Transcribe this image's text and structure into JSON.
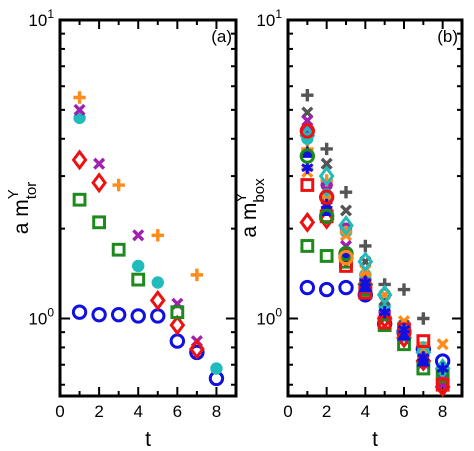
{
  "chart_data": [
    {
      "type": "scatter",
      "panel_label": "(a)",
      "xlabel": "t",
      "ylabel": {
        "main": "a m",
        "sup": "Y",
        "sub": "tor"
      },
      "xlim": [
        0,
        9
      ],
      "ylim": [
        0.55,
        10
      ],
      "yscale": "log",
      "x_ticks": [
        0,
        2,
        4,
        6,
        8
      ],
      "y_ticks": [
        {
          "value": 1,
          "base": "10",
          "exp": "0"
        },
        {
          "value": 10,
          "base": "10",
          "exp": "1"
        }
      ],
      "grid": false,
      "series": [
        {
          "marker": "circle-open",
          "color": "#1010e0",
          "points": [
            [
              1,
              1.05
            ],
            [
              2,
              1.03
            ],
            [
              3,
              1.03
            ],
            [
              4,
              1.02
            ],
            [
              5,
              1.02
            ],
            [
              6,
              0.84
            ],
            [
              7,
              0.77
            ],
            [
              8,
              0.63
            ]
          ]
        },
        {
          "marker": "circle-filled",
          "color": "#22bbbb",
          "points": [
            [
              1,
              4.7
            ],
            [
              4,
              1.5
            ],
            [
              5,
              1.32
            ],
            [
              8,
              0.68
            ]
          ]
        },
        {
          "marker": "plus",
          "color": "#ff8c1a",
          "points": [
            [
              1,
              5.5
            ],
            [
              3,
              2.8
            ],
            [
              5,
              1.9
            ],
            [
              7,
              1.4
            ]
          ]
        },
        {
          "marker": "x",
          "color": "#a020b0",
          "points": [
            [
              1,
              5.0
            ],
            [
              2,
              3.3
            ],
            [
              4,
              1.9
            ],
            [
              6,
              1.12
            ],
            [
              7,
              0.84
            ]
          ]
        },
        {
          "marker": "diamond-open",
          "color": "#ee1111",
          "points": [
            [
              1,
              3.4
            ],
            [
              2,
              2.85
            ],
            [
              5,
              1.15
            ],
            [
              6,
              0.95
            ],
            [
              7,
              0.79
            ]
          ]
        },
        {
          "marker": "square-open",
          "color": "#1e8a1e",
          "points": [
            [
              1,
              2.5
            ],
            [
              2,
              2.1
            ],
            [
              3,
              1.7
            ],
            [
              4,
              1.35
            ],
            [
              6,
              1.05
            ]
          ]
        }
      ]
    },
    {
      "type": "scatter",
      "panel_label": "(b)",
      "xlabel": "t",
      "ylabel": {
        "main": "a m",
        "sup": "Y",
        "sub": "box"
      },
      "xlim": [
        0,
        9
      ],
      "ylim": [
        0.55,
        10
      ],
      "yscale": "log",
      "x_ticks": [
        0,
        2,
        4,
        6,
        8
      ],
      "y_ticks": [
        {
          "value": 1,
          "base": "10",
          "exp": "0"
        },
        {
          "value": 10,
          "base": "10",
          "exp": "1"
        }
      ],
      "grid": false,
      "series": [
        {
          "marker": "circle-open",
          "color": "#1010e0",
          "points": [
            [
              1,
              1.27
            ],
            [
              2,
              1.25
            ],
            [
              3,
              1.27
            ],
            [
              4,
              1.2
            ],
            [
              5,
              0.96
            ],
            [
              6,
              0.9
            ],
            [
              7,
              0.79
            ],
            [
              8,
              0.72
            ]
          ]
        },
        {
          "marker": "circle-filled",
          "color": "#a020b0",
          "points": [
            [
              1,
              4.3
            ],
            [
              2,
              2.8
            ],
            [
              3,
              2.0
            ],
            [
              4,
              1.35
            ],
            [
              5,
              1.05
            ],
            [
              6,
              0.88
            ],
            [
              7,
              0.75
            ],
            [
              8,
              0.62
            ]
          ]
        },
        {
          "marker": "circle-filled",
          "color": "#22bbbb",
          "points": [
            [
              1,
              4.0
            ],
            [
              2,
              2.6
            ],
            [
              3,
              1.95
            ],
            [
              4,
              1.4
            ],
            [
              5,
              1.1
            ],
            [
              7,
              0.8
            ]
          ]
        },
        {
          "marker": "plus",
          "color": "#555555",
          "points": [
            [
              1,
              5.6
            ],
            [
              2,
              3.7
            ],
            [
              3,
              2.65
            ],
            [
              4,
              1.75
            ],
            [
              5,
              1.3
            ],
            [
              6,
              1.25
            ],
            [
              7,
              1.0
            ]
          ]
        },
        {
          "marker": "plus",
          "color": "#ff8c1a",
          "points": [
            [
              1,
              3.7
            ],
            [
              2,
              2.9
            ],
            [
              3,
              1.95
            ],
            [
              4,
              1.4
            ]
          ]
        },
        {
          "marker": "x",
          "color": "#555555",
          "points": [
            [
              1,
              4.9
            ],
            [
              2,
              3.3
            ],
            [
              3,
              2.3
            ],
            [
              4,
              1.55
            ],
            [
              5,
              1.15
            ],
            [
              6,
              0.95
            ],
            [
              7,
              0.8
            ],
            [
              8,
              0.67
            ]
          ]
        },
        {
          "marker": "x",
          "color": "#ff8c1a",
          "points": [
            [
              1,
              3.1
            ],
            [
              2,
              2.5
            ],
            [
              3,
              1.9
            ],
            [
              4,
              1.45
            ],
            [
              5,
              1.2
            ],
            [
              6,
              0.98
            ],
            [
              7,
              0.8
            ],
            [
              8,
              0.82
            ]
          ]
        },
        {
          "marker": "x",
          "color": "#a020b0",
          "points": [
            [
              1,
              4.6
            ],
            [
              2,
              2.4
            ],
            [
              3,
              1.75
            ],
            [
              4,
              1.25
            ],
            [
              5,
              1.0
            ],
            [
              6,
              0.86
            ],
            [
              7,
              0.71
            ],
            [
              8,
              0.6
            ]
          ]
        },
        {
          "marker": "diamond-open",
          "color": "#22bbbb",
          "points": [
            [
              1,
              4.1
            ],
            [
              2,
              3.0
            ],
            [
              3,
              2.05
            ],
            [
              4,
              1.55
            ],
            [
              5,
              1.2
            ],
            [
              6,
              0.9
            ],
            [
              7,
              0.77
            ],
            [
              8,
              0.68
            ]
          ]
        },
        {
          "marker": "diamond-open",
          "color": "#ee1111",
          "points": [
            [
              1,
              2.1
            ],
            [
              2,
              2.15
            ],
            [
              3,
              1.6
            ],
            [
              4,
              1.3
            ],
            [
              5,
              1.0
            ],
            [
              6,
              0.86
            ],
            [
              7,
              0.72
            ],
            [
              8,
              0.59
            ]
          ]
        },
        {
          "marker": "square-open",
          "color": "#1e8a1e",
          "points": [
            [
              1,
              1.75
            ],
            [
              2,
              1.62
            ],
            [
              3,
              1.55
            ],
            [
              4,
              1.25
            ],
            [
              5,
              0.95
            ],
            [
              6,
              0.82
            ],
            [
              7,
              0.68
            ],
            [
              8,
              0.64
            ]
          ]
        },
        {
          "marker": "square-open",
          "color": "#ee1111",
          "points": [
            [
              1,
              2.8
            ],
            [
              2,
              2.2
            ],
            [
              3,
              1.5
            ],
            [
              4,
              1.22
            ],
            [
              5,
              0.97
            ],
            [
              6,
              0.92
            ],
            [
              7,
              0.84
            ],
            [
              8,
              0.6
            ]
          ]
        },
        {
          "marker": "star",
          "color": "#1010e0",
          "points": [
            [
              1,
              3.2
            ],
            [
              2,
              2.4
            ],
            [
              3,
              1.62
            ],
            [
              4,
              1.32
            ],
            [
              5,
              1.05
            ],
            [
              6,
              0.92
            ],
            [
              7,
              0.74
            ],
            [
              8,
              0.68
            ]
          ]
        },
        {
          "marker": "triangle",
          "color": "#1010e0",
          "points": [
            [
              1,
              3.6
            ],
            [
              2,
              2.3
            ],
            [
              4,
              1.28
            ],
            [
              6,
              0.88
            ],
            [
              7,
              0.72
            ]
          ]
        },
        {
          "marker": "circle-open",
          "color": "#1e8a1e",
          "points": [
            [
              1,
              3.5
            ],
            [
              2,
              2.2
            ],
            [
              3,
              1.65
            ]
          ]
        },
        {
          "marker": "circle-open",
          "color": "#ee1111",
          "points": [
            [
              1,
              4.25
            ],
            [
              2,
              2.55
            ]
          ]
        },
        {
          "marker": "circle-open",
          "color": "#ff8c1a",
          "points": [
            [
              3,
              1.6
            ]
          ]
        }
      ]
    }
  ]
}
